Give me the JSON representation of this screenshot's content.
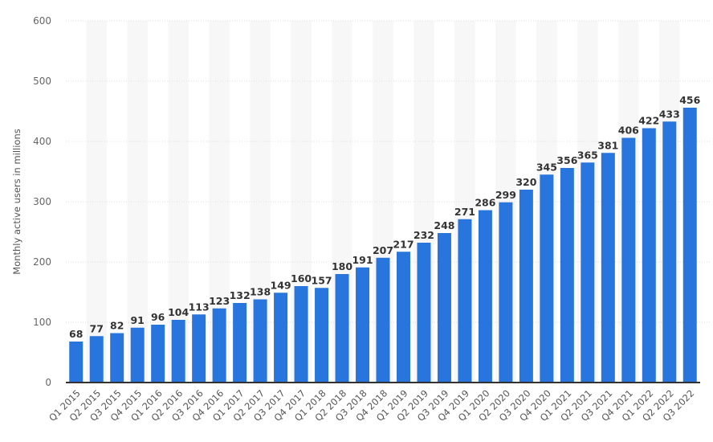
{
  "chart_data": {
    "type": "bar",
    "title": "",
    "xlabel": "",
    "ylabel": "Monthly active users in millions",
    "ylim": [
      0,
      600
    ],
    "yticks": [
      0,
      100,
      200,
      300,
      400,
      500,
      600
    ],
    "grid": true,
    "bar_color": "#2876dd",
    "categories": [
      "Q1 2015",
      "Q2 2015",
      "Q3 2015",
      "Q4 2015",
      "Q1 2016",
      "Q2 2016",
      "Q3 2016",
      "Q4 2016",
      "Q1 2017",
      "Q2 2017",
      "Q3 2017",
      "Q4 2017",
      "Q1 2018",
      "Q2 2018",
      "Q3 2018",
      "Q4 2018",
      "Q1 2019",
      "Q2 2019",
      "Q3 2019",
      "Q4 2019",
      "Q1 2020",
      "Q2 2020",
      "Q3 2020",
      "Q4 2020",
      "Q1 2021",
      "Q2 2021",
      "Q3 2021",
      "Q4 2021",
      "Q1 2022",
      "Q2 2022",
      "Q3 2022"
    ],
    "values": [
      68,
      77,
      82,
      91,
      96,
      104,
      113,
      123,
      132,
      138,
      149,
      160,
      157,
      180,
      191,
      207,
      217,
      232,
      248,
      271,
      286,
      299,
      320,
      345,
      356,
      365,
      381,
      406,
      422,
      433,
      456
    ]
  }
}
